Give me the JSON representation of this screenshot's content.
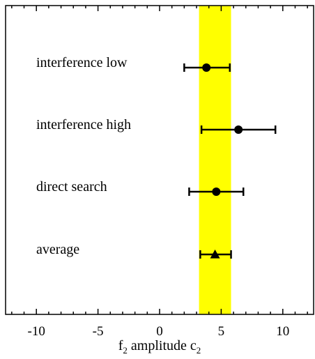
{
  "chart_data": {
    "type": "scatter",
    "orientation": "horizontal-error-bars",
    "categories": [
      "interference low",
      "interference high",
      "direct search",
      "average"
    ],
    "points": [
      {
        "label": "interference low",
        "value": 3.8,
        "err_low": 2.0,
        "err_high": 5.7,
        "marker": "circle"
      },
      {
        "label": "interference high",
        "value": 6.4,
        "err_low": 3.4,
        "err_high": 9.4,
        "marker": "circle"
      },
      {
        "label": "direct search",
        "value": 4.6,
        "err_low": 2.4,
        "err_high": 6.8,
        "marker": "circle"
      },
      {
        "label": "average",
        "value": 4.5,
        "err_low": 3.3,
        "err_high": 5.8,
        "marker": "triangle"
      }
    ],
    "band": {
      "low": 3.2,
      "high": 5.8,
      "color": "#ffff00"
    },
    "xlim": [
      -12.5,
      12.5
    ],
    "xticks": [
      -10,
      -5,
      0,
      5,
      10
    ],
    "xtick_labels": [
      "-10",
      "-5",
      "0",
      "5",
      "10"
    ],
    "xlabel": {
      "parts": [
        {
          "text": "f",
          "sub": false
        },
        {
          "text": "2",
          "sub": true
        },
        {
          "text": " amplitude c",
          "sub": false
        },
        {
          "text": "2",
          "sub": true
        }
      ]
    },
    "grid": false,
    "legend": "none"
  }
}
